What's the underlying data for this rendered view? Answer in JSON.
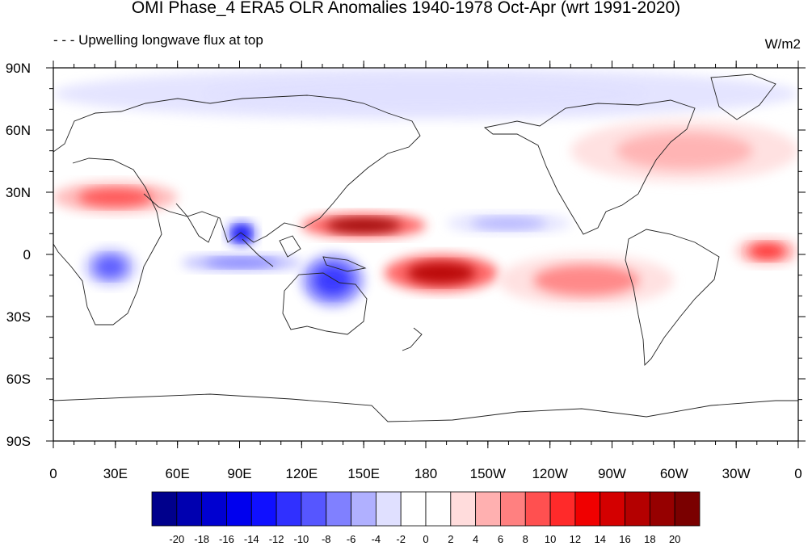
{
  "title": "OMI Phase_4 ERA5 OLR Anomalies 1940-1978 Oct-Apr (wrt 1991-2020)",
  "subtitle": "- - - Upwelling longwave flux at top",
  "units": "W/m2",
  "map": {
    "projection": "cylindrical-equidistant",
    "lon_range": [
      0,
      360
    ],
    "lat_range": [
      -90,
      90
    ],
    "lon_ticks": [
      "0",
      "30E",
      "60E",
      "90E",
      "120E",
      "150E",
      "180",
      "150W",
      "120W",
      "90W",
      "60W",
      "30W",
      "0"
    ],
    "lat_ticks": [
      "90N",
      "60N",
      "30N",
      "0",
      "30S",
      "60S",
      "90S"
    ],
    "anomaly_regions": [
      {
        "sign": "negative",
        "value": -16,
        "lon": [
          84,
          98
        ],
        "lat": [
          4,
          16
        ]
      },
      {
        "sign": "negative",
        "value": -12,
        "lon": [
          120,
          150
        ],
        "lat": [
          -25,
          0
        ]
      },
      {
        "sign": "negative",
        "value": -8,
        "lon": [
          62,
          120
        ],
        "lat": [
          -8,
          0
        ]
      },
      {
        "sign": "negative",
        "value": -10,
        "lon": [
          15,
          40
        ],
        "lat": [
          -15,
          3
        ]
      },
      {
        "sign": "negative",
        "value": -6,
        "lon": [
          190,
          250
        ],
        "lat": [
          10,
          20
        ]
      },
      {
        "sign": "negative",
        "value": -4,
        "lon": [
          0,
          360
        ],
        "lat": [
          65,
          90
        ]
      },
      {
        "sign": "positive",
        "value": 18,
        "lon": [
          120,
          180
        ],
        "lat": [
          8,
          20
        ]
      },
      {
        "sign": "positive",
        "value": 16,
        "lon": [
          160,
          215
        ],
        "lat": [
          -18,
          0
        ]
      },
      {
        "sign": "positive",
        "value": 10,
        "lon": [
          330,
          360
        ],
        "lat": [
          -5,
          8
        ]
      },
      {
        "sign": "positive",
        "value": 8,
        "lon": [
          0,
          60
        ],
        "lat": [
          20,
          35
        ]
      },
      {
        "sign": "positive",
        "value": 6,
        "lon": [
          215,
          300
        ],
        "lat": [
          -25,
          0
        ]
      },
      {
        "sign": "positive",
        "value": 4,
        "lon": [
          250,
          360
        ],
        "lat": [
          35,
          65
        ]
      }
    ]
  },
  "colorbar": {
    "labels": [
      "-20",
      "-18",
      "-16",
      "-14",
      "-12",
      "-10",
      "-8",
      "-6",
      "-4",
      "-2",
      "0",
      "2",
      "4",
      "6",
      "8",
      "10",
      "12",
      "14",
      "16",
      "18",
      "20"
    ],
    "colors": [
      "#00008c",
      "#0000b0",
      "#0000d0",
      "#0000ee",
      "#1010ff",
      "#3030ff",
      "#5656ff",
      "#8080ff",
      "#b0b0ff",
      "#e0e0ff",
      "#ffffff",
      "#ffffff",
      "#ffdcdc",
      "#ffb0b0",
      "#ff8080",
      "#ff5050",
      "#ff2a2a",
      "#f00000",
      "#d40000",
      "#b40000",
      "#960000",
      "#7a0000"
    ]
  }
}
